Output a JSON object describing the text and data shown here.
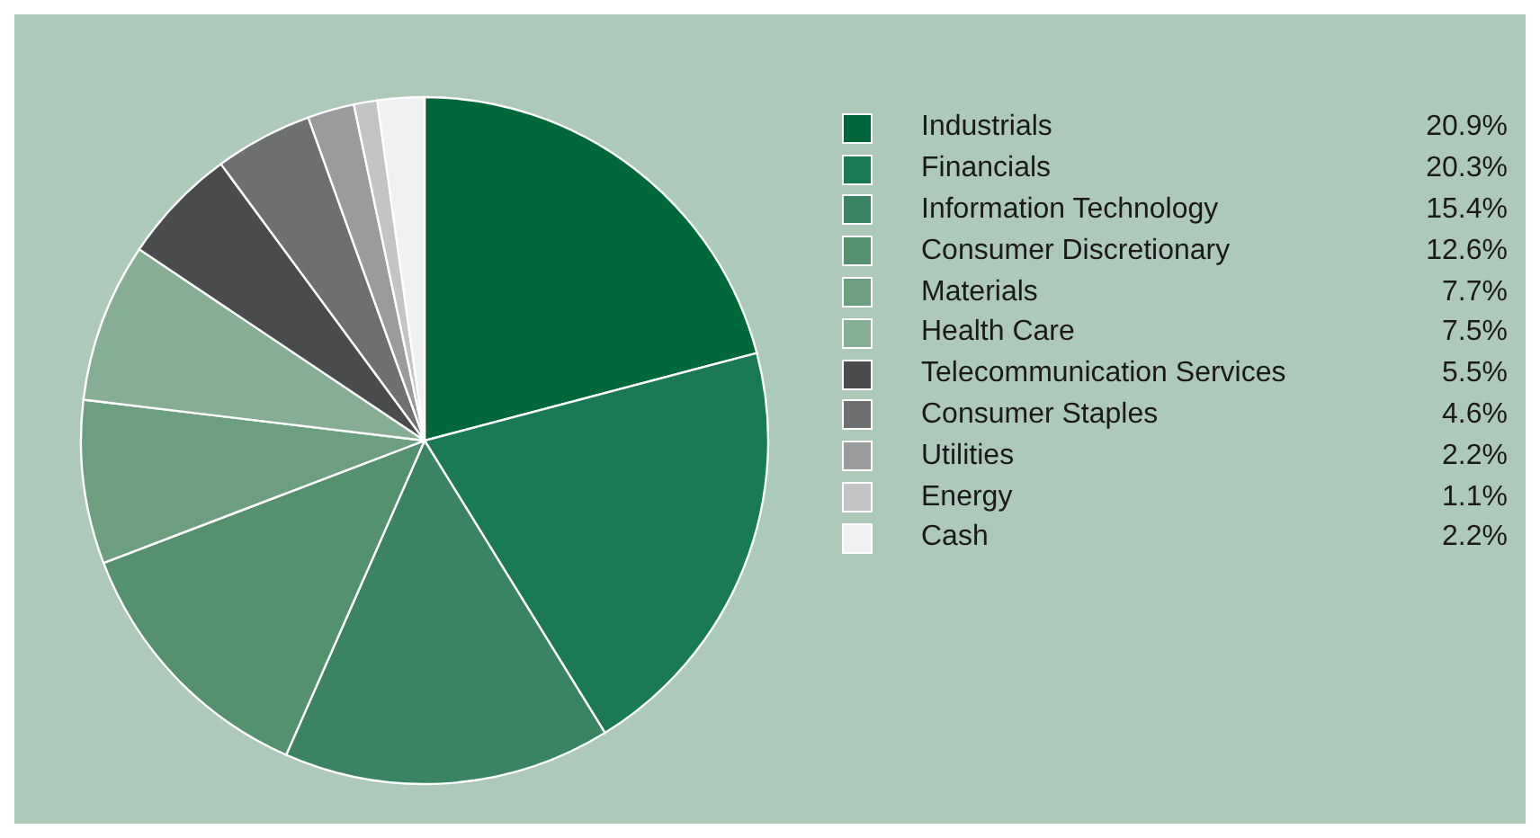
{
  "chart_data": {
    "type": "pie",
    "categories": [
      "Industrials",
      "Financials",
      "Information Technology",
      "Consumer Discretionary",
      "Materials",
      "Health Care",
      "Telecommunication Services",
      "Consumer Staples",
      "Utilities",
      "Energy",
      "Cash"
    ],
    "values": [
      20.9,
      20.3,
      15.4,
      12.6,
      7.7,
      7.5,
      5.5,
      4.6,
      2.2,
      1.1,
      2.2
    ],
    "value_labels": [
      "20.9%",
      "20.3%",
      "15.4%",
      "12.6%",
      "7.7%",
      "7.5%",
      "5.5%",
      "4.6%",
      "2.2%",
      "1.1%",
      "2.2%"
    ],
    "colors": [
      "#00673b",
      "#1a7a55",
      "#3a8464",
      "#54926f",
      "#6b9f80",
      "#85ae94",
      "#4a4b4d",
      "#6e6f71",
      "#9a9b9d",
      "#c3c4c6",
      "#f0f2f1"
    ],
    "legend": "right"
  }
}
